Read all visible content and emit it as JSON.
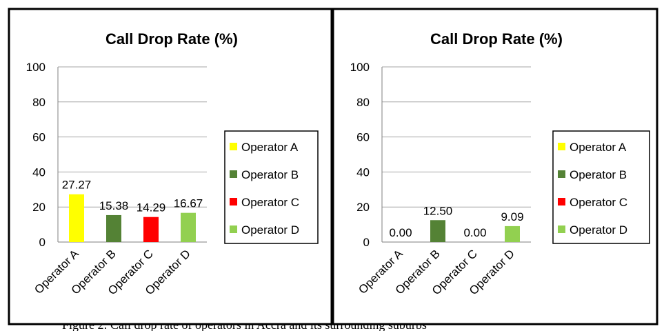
{
  "chart_data": [
    {
      "type": "bar",
      "title": "Call Drop Rate (%)",
      "categories": [
        "Operator A",
        "Operator B",
        "Operator C",
        "Operator D"
      ],
      "values": [
        27.27,
        15.38,
        14.29,
        16.67
      ],
      "data_labels": [
        "27.27",
        "15.38",
        "14.29",
        "16.67"
      ],
      "colors": [
        "#ffff00",
        "#548235",
        "#ff0000",
        "#92d050"
      ],
      "ylim": [
        0,
        100
      ],
      "yticks": [
        0,
        20,
        40,
        60,
        80,
        100
      ],
      "ytick_labels": [
        "0",
        "20",
        "40",
        "60",
        "80",
        "100"
      ],
      "grid": true,
      "legend": {
        "position": "right",
        "entries": [
          "Operator A",
          "Operator B",
          "Operator C",
          "Operator D"
        ]
      },
      "xlabel": "",
      "ylabel": ""
    },
    {
      "type": "bar",
      "title": "Call Drop Rate (%)",
      "categories": [
        "Operator A",
        "Operator B",
        "Operator C",
        "Operator D"
      ],
      "values": [
        0.0,
        12.5,
        0.0,
        9.09
      ],
      "data_labels": [
        "0.00",
        "12.50",
        "0.00",
        "9.09"
      ],
      "colors": [
        "#ffff00",
        "#548235",
        "#ff0000",
        "#92d050"
      ],
      "ylim": [
        0,
        100
      ],
      "yticks": [
        0,
        20,
        40,
        60,
        80,
        100
      ],
      "ytick_labels": [
        "0",
        "20",
        "40",
        "60",
        "80",
        "100"
      ],
      "grid": true,
      "legend": {
        "position": "right",
        "entries": [
          "Operator A",
          "Operator B",
          "Operator C",
          "Operator D"
        ]
      },
      "xlabel": "",
      "ylabel": ""
    }
  ],
  "caption": {
    "text": "Figure 2: Call drop rate of operators in Accra and its surrounding suburbs"
  }
}
